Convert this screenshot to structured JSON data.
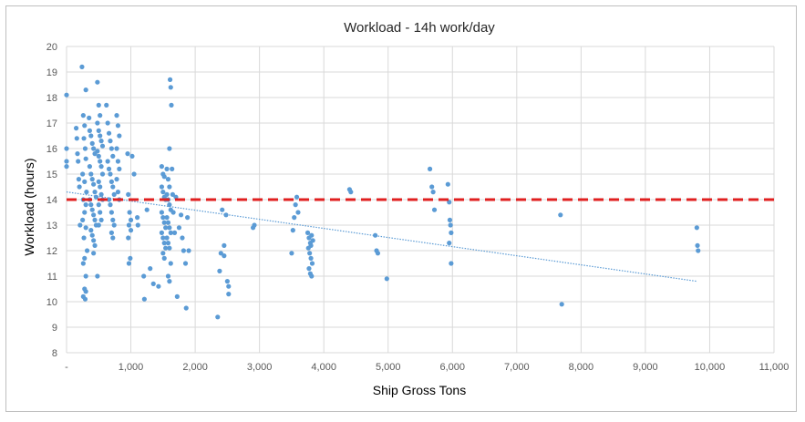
{
  "chart_data": {
    "type": "scatter",
    "title": "Workload - 14h work/day",
    "xlabel": "Ship Gross Tons",
    "ylabel": "Workload (hours)",
    "xlim": [
      0,
      11000
    ],
    "ylim": [
      8,
      20
    ],
    "x_ticks": [
      0,
      1000,
      2000,
      3000,
      4000,
      5000,
      6000,
      7000,
      8000,
      9000,
      10000,
      11000
    ],
    "x_tick_labels": [
      "-",
      "1,000",
      "2,000",
      "3,000",
      "4,000",
      "5,000",
      "6,000",
      "7,000",
      "8,000",
      "9,000",
      "10,000",
      "11,000"
    ],
    "y_ticks": [
      8,
      9,
      10,
      11,
      12,
      13,
      14,
      15,
      16,
      17,
      18,
      19,
      20
    ],
    "y_tick_labels": [
      "8",
      "9",
      "10",
      "11",
      "12",
      "13",
      "14",
      "15",
      "16",
      "17",
      "18",
      "19",
      "20"
    ],
    "grid": true,
    "legend": "none",
    "colors": {
      "points": "#5b9bd5",
      "threshold": "#e02020",
      "trend": "#5b9bd5",
      "grid": "#d9d9d9"
    },
    "threshold_line": {
      "y": 14,
      "style": "dashed"
    },
    "trendline": {
      "type": "linear",
      "x": [
        0,
        9800
      ],
      "y": [
        14.3,
        10.8
      ],
      "style": "dotted"
    },
    "series": [
      {
        "points": [
          [
            0,
            18.1
          ],
          [
            0,
            16.0
          ],
          [
            0,
            15.5
          ],
          [
            0,
            15.3
          ],
          [
            150,
            16.8
          ],
          [
            160,
            16.4
          ],
          [
            170,
            15.8
          ],
          [
            180,
            15.5
          ],
          [
            190,
            14.8
          ],
          [
            200,
            14.5
          ],
          [
            210,
            13.0
          ],
          [
            240,
            19.2
          ],
          [
            300,
            18.3
          ],
          [
            260,
            17.3
          ],
          [
            280,
            16.9
          ],
          [
            270,
            16.4
          ],
          [
            290,
            16.0
          ],
          [
            300,
            15.6
          ],
          [
            250,
            15.0
          ],
          [
            280,
            14.7
          ],
          [
            310,
            14.3
          ],
          [
            260,
            14.0
          ],
          [
            300,
            13.8
          ],
          [
            280,
            13.5
          ],
          [
            250,
            13.2
          ],
          [
            300,
            12.9
          ],
          [
            270,
            12.5
          ],
          [
            320,
            12.0
          ],
          [
            280,
            11.7
          ],
          [
            260,
            11.5
          ],
          [
            300,
            11.0
          ],
          [
            280,
            10.5
          ],
          [
            300,
            10.4
          ],
          [
            260,
            10.2
          ],
          [
            290,
            10.1
          ],
          [
            350,
            17.2
          ],
          [
            360,
            16.7
          ],
          [
            380,
            16.5
          ],
          [
            400,
            16.2
          ],
          [
            420,
            16.0
          ],
          [
            440,
            15.8
          ],
          [
            360,
            15.3
          ],
          [
            380,
            15.0
          ],
          [
            400,
            14.8
          ],
          [
            420,
            14.6
          ],
          [
            440,
            14.3
          ],
          [
            460,
            14.1
          ],
          [
            360,
            14.0
          ],
          [
            380,
            13.8
          ],
          [
            400,
            13.6
          ],
          [
            420,
            13.4
          ],
          [
            440,
            13.2
          ],
          [
            460,
            13.0
          ],
          [
            380,
            12.8
          ],
          [
            400,
            12.6
          ],
          [
            420,
            12.4
          ],
          [
            440,
            12.2
          ],
          [
            420,
            11.9
          ],
          [
            480,
            18.6
          ],
          [
            500,
            17.7
          ],
          [
            520,
            17.3
          ],
          [
            480,
            17.0
          ],
          [
            500,
            16.7
          ],
          [
            520,
            16.5
          ],
          [
            540,
            16.3
          ],
          [
            560,
            16.1
          ],
          [
            480,
            15.9
          ],
          [
            500,
            15.7
          ],
          [
            520,
            15.5
          ],
          [
            540,
            15.3
          ],
          [
            560,
            15.0
          ],
          [
            500,
            14.7
          ],
          [
            520,
            14.5
          ],
          [
            540,
            14.2
          ],
          [
            560,
            14.0
          ],
          [
            500,
            13.8
          ],
          [
            520,
            13.5
          ],
          [
            540,
            13.2
          ],
          [
            500,
            13.0
          ],
          [
            480,
            11.0
          ],
          [
            620,
            17.7
          ],
          [
            640,
            17.0
          ],
          [
            660,
            16.6
          ],
          [
            680,
            16.3
          ],
          [
            700,
            16.0
          ],
          [
            720,
            15.7
          ],
          [
            640,
            15.5
          ],
          [
            660,
            15.2
          ],
          [
            680,
            15.0
          ],
          [
            700,
            14.7
          ],
          [
            720,
            14.5
          ],
          [
            740,
            14.2
          ],
          [
            660,
            14.0
          ],
          [
            680,
            13.8
          ],
          [
            700,
            13.5
          ],
          [
            720,
            13.2
          ],
          [
            740,
            13.0
          ],
          [
            700,
            12.7
          ],
          [
            720,
            12.5
          ],
          [
            780,
            17.3
          ],
          [
            800,
            16.9
          ],
          [
            820,
            16.5
          ],
          [
            780,
            16.0
          ],
          [
            800,
            15.5
          ],
          [
            820,
            15.2
          ],
          [
            780,
            14.8
          ],
          [
            800,
            14.3
          ],
          [
            820,
            14.0
          ],
          [
            950,
            15.8
          ],
          [
            960,
            14.2
          ],
          [
            980,
            13.5
          ],
          [
            1000,
            13.2
          ],
          [
            970,
            13.0
          ],
          [
            1000,
            12.8
          ],
          [
            960,
            12.5
          ],
          [
            990,
            11.7
          ],
          [
            970,
            11.5
          ],
          [
            1020,
            15.7
          ],
          [
            1050,
            15.0
          ],
          [
            1100,
            13.3
          ],
          [
            1110,
            13.0
          ],
          [
            1200,
            11.0
          ],
          [
            1210,
            10.1
          ],
          [
            1250,
            13.6
          ],
          [
            1300,
            11.3
          ],
          [
            1350,
            10.7
          ],
          [
            1430,
            10.6
          ],
          [
            1480,
            15.3
          ],
          [
            1500,
            15.0
          ],
          [
            1520,
            14.9
          ],
          [
            1480,
            14.5
          ],
          [
            1500,
            14.3
          ],
          [
            1520,
            14.1
          ],
          [
            1540,
            14.0
          ],
          [
            1480,
            13.5
          ],
          [
            1500,
            13.3
          ],
          [
            1520,
            13.1
          ],
          [
            1540,
            12.9
          ],
          [
            1480,
            12.7
          ],
          [
            1500,
            12.5
          ],
          [
            1520,
            12.3
          ],
          [
            1540,
            12.1
          ],
          [
            1500,
            11.9
          ],
          [
            1520,
            11.7
          ],
          [
            1560,
            15.2
          ],
          [
            1580,
            14.8
          ],
          [
            1600,
            14.5
          ],
          [
            1560,
            14.2
          ],
          [
            1580,
            14.0
          ],
          [
            1600,
            13.8
          ],
          [
            1620,
            13.6
          ],
          [
            1560,
            13.3
          ],
          [
            1580,
            13.1
          ],
          [
            1600,
            12.9
          ],
          [
            1620,
            12.7
          ],
          [
            1560,
            12.5
          ],
          [
            1580,
            12.3
          ],
          [
            1600,
            12.1
          ],
          [
            1620,
            11.5
          ],
          [
            1580,
            11.0
          ],
          [
            1600,
            10.8
          ],
          [
            1600,
            16.0
          ],
          [
            1610,
            18.7
          ],
          [
            1620,
            18.4
          ],
          [
            1630,
            17.7
          ],
          [
            1640,
            15.2
          ],
          [
            1650,
            14.2
          ],
          [
            1660,
            13.5
          ],
          [
            1680,
            12.7
          ],
          [
            1700,
            14.1
          ],
          [
            1720,
            10.2
          ],
          [
            1750,
            12.9
          ],
          [
            1780,
            13.4
          ],
          [
            1800,
            12.5
          ],
          [
            1820,
            12.0
          ],
          [
            1850,
            11.5
          ],
          [
            1860,
            9.75
          ],
          [
            1880,
            13.3
          ],
          [
            1900,
            12.0
          ],
          [
            2350,
            9.4
          ],
          [
            2380,
            11.2
          ],
          [
            2400,
            11.9
          ],
          [
            2420,
            13.6
          ],
          [
            2450,
            12.2
          ],
          [
            2450,
            11.8
          ],
          [
            2480,
            13.4
          ],
          [
            2500,
            10.8
          ],
          [
            2520,
            10.3
          ],
          [
            2520,
            10.6
          ],
          [
            2900,
            12.9
          ],
          [
            2920,
            13.0
          ],
          [
            3500,
            11.9
          ],
          [
            3520,
            12.8
          ],
          [
            3540,
            13.3
          ],
          [
            3560,
            13.8
          ],
          [
            3580,
            14.1
          ],
          [
            3600,
            13.5
          ],
          [
            3750,
            12.7
          ],
          [
            3770,
            12.5
          ],
          [
            3790,
            12.3
          ],
          [
            3810,
            12.6
          ],
          [
            3760,
            12.1
          ],
          [
            3780,
            11.9
          ],
          [
            3800,
            11.7
          ],
          [
            3820,
            11.5
          ],
          [
            3770,
            11.3
          ],
          [
            3790,
            11.1
          ],
          [
            3810,
            11.0
          ],
          [
            3830,
            12.4
          ],
          [
            3800,
            12.2
          ],
          [
            4400,
            14.4
          ],
          [
            4420,
            14.3
          ],
          [
            4800,
            12.6
          ],
          [
            4820,
            12.0
          ],
          [
            4840,
            11.9
          ],
          [
            4980,
            10.9
          ],
          [
            5650,
            15.2
          ],
          [
            5680,
            14.5
          ],
          [
            5700,
            14.3
          ],
          [
            5720,
            13.6
          ],
          [
            5930,
            14.6
          ],
          [
            5950,
            13.9
          ],
          [
            5960,
            13.2
          ],
          [
            5970,
            13.0
          ],
          [
            5980,
            12.7
          ],
          [
            5950,
            12.3
          ],
          [
            5980,
            11.5
          ],
          [
            7680,
            13.4
          ],
          [
            7700,
            9.9
          ],
          [
            9800,
            12.9
          ],
          [
            9810,
            12.2
          ],
          [
            9820,
            12.0
          ]
        ]
      }
    ]
  }
}
